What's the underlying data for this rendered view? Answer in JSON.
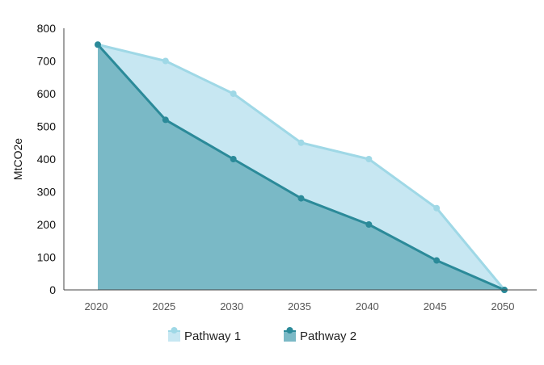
{
  "chart_data": {
    "type": "area",
    "title": "",
    "xlabel": "",
    "ylabel": "MtCO2e",
    "x": [
      2020,
      2025,
      2030,
      2035,
      2040,
      2045,
      2050
    ],
    "ylim": [
      0,
      800
    ],
    "yticks": [
      0,
      100,
      200,
      300,
      400,
      500,
      600,
      700,
      800
    ],
    "grid": false,
    "legend_position": "bottom",
    "series": [
      {
        "name": "Pathway 1",
        "values": [
          750,
          700,
          600,
          450,
          400,
          250,
          0
        ],
        "line_color": "#9fd8e6",
        "fill_color": "#c7e7f2"
      },
      {
        "name": "Pathway 2",
        "values": [
          750,
          520,
          400,
          280,
          200,
          90,
          0
        ],
        "line_color": "#2b8a99",
        "fill_color": "#7ab9c6"
      }
    ]
  }
}
